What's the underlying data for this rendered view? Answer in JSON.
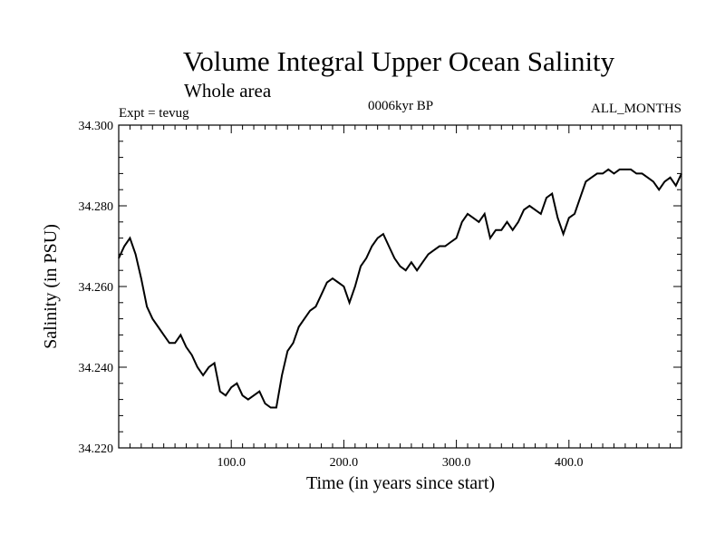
{
  "chart_data": {
    "type": "line",
    "title": "Volume Integral Upper Ocean Salinity",
    "subtitle": "Whole area",
    "experiment_label": "Expt = tevug",
    "period_label": "0006kyr BP",
    "months_label": "ALL_MONTHS",
    "xlabel": "Time (in years since start)",
    "ylabel": "Salinity (in PSU)",
    "xlim": [
      0,
      500
    ],
    "ylim": [
      34.22,
      34.3
    ],
    "x_ticks": [
      100,
      200,
      300,
      400
    ],
    "x_tick_labels": [
      "100.0",
      "200.0",
      "300.0",
      "400.0"
    ],
    "y_ticks": [
      34.22,
      34.24,
      34.26,
      34.28,
      34.3
    ],
    "y_tick_labels": [
      "34.220",
      "34.240",
      "34.260",
      "34.280",
      "34.300"
    ],
    "grid": false,
    "line_color": "#000000",
    "series": [
      {
        "x": [
          0,
          5,
          10,
          15,
          20,
          25,
          30,
          35,
          40,
          45,
          50,
          55,
          60,
          65,
          70,
          75,
          80,
          85,
          90,
          95,
          100,
          105,
          110,
          115,
          120,
          125,
          130,
          135,
          140,
          145,
          150,
          155,
          160,
          165,
          170,
          175,
          180,
          185,
          190,
          195,
          200,
          205,
          210,
          215,
          220,
          225,
          230,
          235,
          240,
          245,
          250,
          255,
          260,
          265,
          270,
          275,
          280,
          285,
          290,
          295,
          300,
          305,
          310,
          315,
          320,
          325,
          330,
          335,
          340,
          345,
          350,
          355,
          360,
          365,
          370,
          375,
          380,
          385,
          390,
          395,
          400,
          405,
          410,
          415,
          420,
          425,
          430,
          435,
          440,
          445,
          450,
          455,
          460,
          465,
          470,
          475,
          480,
          485,
          490,
          495,
          500
        ],
        "y": [
          34.267,
          34.27,
          34.272,
          34.268,
          34.262,
          34.255,
          34.252,
          34.25,
          34.248,
          34.246,
          34.246,
          34.248,
          34.245,
          34.243,
          34.24,
          34.238,
          34.24,
          34.241,
          34.234,
          34.233,
          34.235,
          34.236,
          34.233,
          34.232,
          34.233,
          34.234,
          34.231,
          34.23,
          34.23,
          34.238,
          34.244,
          34.246,
          34.25,
          34.252,
          34.254,
          34.255,
          34.258,
          34.261,
          34.262,
          34.261,
          34.26,
          34.256,
          34.26,
          34.265,
          34.267,
          34.27,
          34.272,
          34.273,
          34.27,
          34.267,
          34.265,
          34.264,
          34.266,
          34.264,
          34.266,
          34.268,
          34.269,
          34.27,
          34.27,
          34.271,
          34.272,
          34.276,
          34.278,
          34.277,
          34.276,
          34.278,
          34.272,
          34.274,
          34.274,
          34.276,
          34.274,
          34.276,
          34.279,
          34.28,
          34.279,
          34.278,
          34.282,
          34.283,
          34.277,
          34.273,
          34.277,
          34.278,
          34.282,
          34.286,
          34.287,
          34.288,
          34.288,
          34.289,
          34.288,
          34.289,
          34.289,
          34.289,
          34.288,
          34.288,
          34.287,
          34.286,
          34.284,
          34.286,
          34.287,
          34.285,
          34.288
        ]
      }
    ]
  }
}
